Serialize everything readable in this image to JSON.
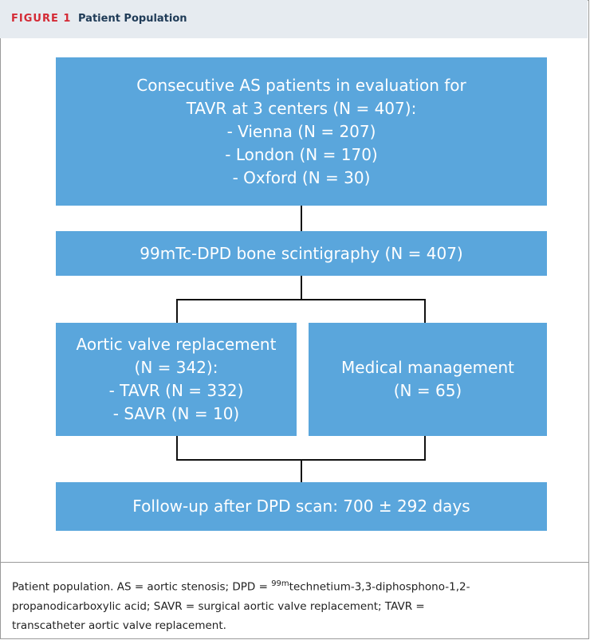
{
  "header": {
    "label": "FIGURE 1",
    "title": "Patient Population"
  },
  "nodes": [
    {
      "lines": [
        "Consecutive AS patients in evaluation for",
        "TAVR at 3 centers (N = 407):",
        "- Vienna (N = 207)",
        "- London (N = 170)",
        "- Oxford (N = 30)"
      ]
    },
    {
      "lines": [
        "99mTc-DPD bone scintigraphy (N = 407)"
      ]
    },
    {
      "lines": [
        "Aortic valve replacement",
        "(N = 342):",
        "- TAVR (N = 332)",
        "- SAVR (N = 10)"
      ]
    },
    {
      "lines": [
        "Medical management",
        "(N = 65)"
      ]
    },
    {
      "lines": [
        "Follow-up after DPD scan: 700 ± 292 days"
      ]
    }
  ],
  "caption": {
    "before": "Patient population. AS = aortic stenosis; DPD = ",
    "sup": "99m",
    "after": "technetium-3,3-diphosphono-1,2-propanodicarboxylic acid; SAVR = surgical aortic valve replacement; TAVR = transcatheter aortic valve replacement."
  }
}
